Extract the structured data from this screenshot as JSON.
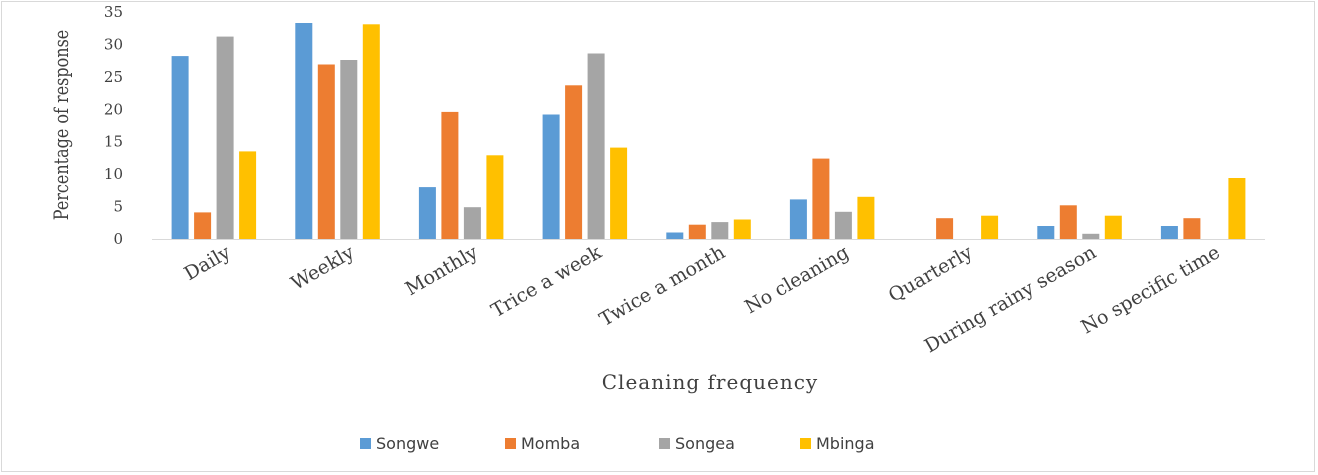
{
  "chart_data": {
    "type": "bar",
    "categories": [
      "Daily",
      "Weekly",
      "Monthly",
      "Trice a week",
      "Twice a month",
      "No cleaning",
      "Quarterly",
      "During rainy season",
      "No  specific time"
    ],
    "series": [
      {
        "name": "Songwe",
        "color": "#5b9bd5",
        "values": [
          28.2,
          33.3,
          8.0,
          19.2,
          1.0,
          6.1,
          0,
          2.0,
          2.0
        ]
      },
      {
        "name": "Momba",
        "color": "#ed7d31",
        "values": [
          4.1,
          26.9,
          19.6,
          23.7,
          2.2,
          12.4,
          3.2,
          5.2,
          3.2
        ]
      },
      {
        "name": "Songea",
        "color": "#a5a5a5",
        "values": [
          31.2,
          27.6,
          4.9,
          28.6,
          2.6,
          4.2,
          0,
          0.8,
          0
        ]
      },
      {
        "name": "Mbinga",
        "color": "#ffc000",
        "values": [
          13.5,
          33.1,
          12.9,
          14.1,
          3.0,
          6.5,
          3.6,
          3.6,
          9.4
        ]
      }
    ],
    "xlabel": "Cleaning frequency",
    "ylabel": "Percentage of response",
    "ylim": [
      0,
      35
    ],
    "yticks": [
      0,
      5,
      10,
      15,
      20,
      25,
      30,
      35
    ],
    "grid": false,
    "legend_position": "bottom"
  }
}
